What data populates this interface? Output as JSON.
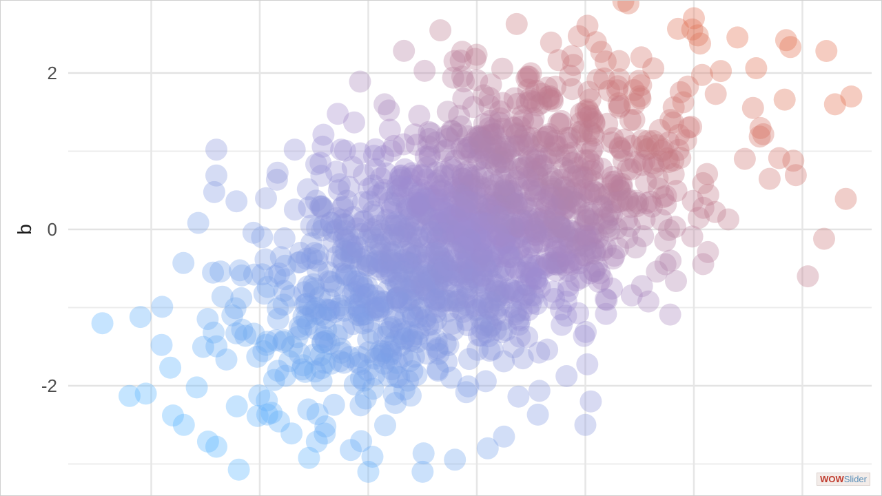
{
  "chart_data": {
    "type": "scatter",
    "title": "",
    "xlabel": "",
    "ylabel": "b",
    "xlim": [
      -3.9,
      3.9
    ],
    "ylim": [
      -3.2,
      2.95
    ],
    "y_ticks": [
      {
        "value": 2,
        "label": "2"
      },
      {
        "value": 0,
        "label": "0"
      },
      {
        "value": -2,
        "label": "-2"
      }
    ],
    "x_gridlines": [
      -3,
      -2,
      -1,
      0,
      1,
      2,
      3
    ],
    "grid": true,
    "legend": "none",
    "color_gradient": {
      "low": "#5ab4ff",
      "mid": "#9f8bcf",
      "high": "#e26d4c",
      "mapped_to": "a + b"
    },
    "point_alpha": 0.35,
    "point_count_approx": 1500,
    "outlier_points": [
      {
        "x": -3.45,
        "y": -1.2
      },
      {
        "x": -3.1,
        "y": -1.12
      },
      {
        "x": -2.9,
        "y": -0.99
      },
      {
        "x": -3.2,
        "y": -2.13
      },
      {
        "x": -3.05,
        "y": -2.1
      },
      {
        "x": -2.8,
        "y": -2.38
      },
      {
        "x": -2.7,
        "y": -2.5
      },
      {
        "x": -2.4,
        "y": -2.78
      },
      {
        "x": -1.0,
        "y": -3.1
      },
      {
        "x": -0.5,
        "y": -3.1
      },
      {
        "x": 0.1,
        "y": -2.8
      },
      {
        "x": 0.25,
        "y": -2.65
      },
      {
        "x": 1.0,
        "y": -2.5
      },
      {
        "x": 1.05,
        "y": -2.2
      },
      {
        "x": 3.4,
        "y": 0.39
      },
      {
        "x": 3.05,
        "y": -0.6
      },
      {
        "x": 3.2,
        "y": -0.12
      },
      {
        "x": 3.3,
        "y": 1.6
      },
      {
        "x": 3.45,
        "y": 1.7
      },
      {
        "x": 2.85,
        "y": 2.42
      },
      {
        "x": 2.0,
        "y": 2.7
      },
      {
        "x": 1.35,
        "y": 2.92
      },
      {
        "x": -0.85,
        "y": 1.6
      },
      {
        "x": -1.25,
        "y": 1.02
      },
      {
        "x": -2.4,
        "y": 1.02
      },
      {
        "x": -2.4,
        "y": 0.69
      }
    ]
  },
  "watermark": {
    "text_a": "WOW",
    "text_b": "Slider"
  }
}
